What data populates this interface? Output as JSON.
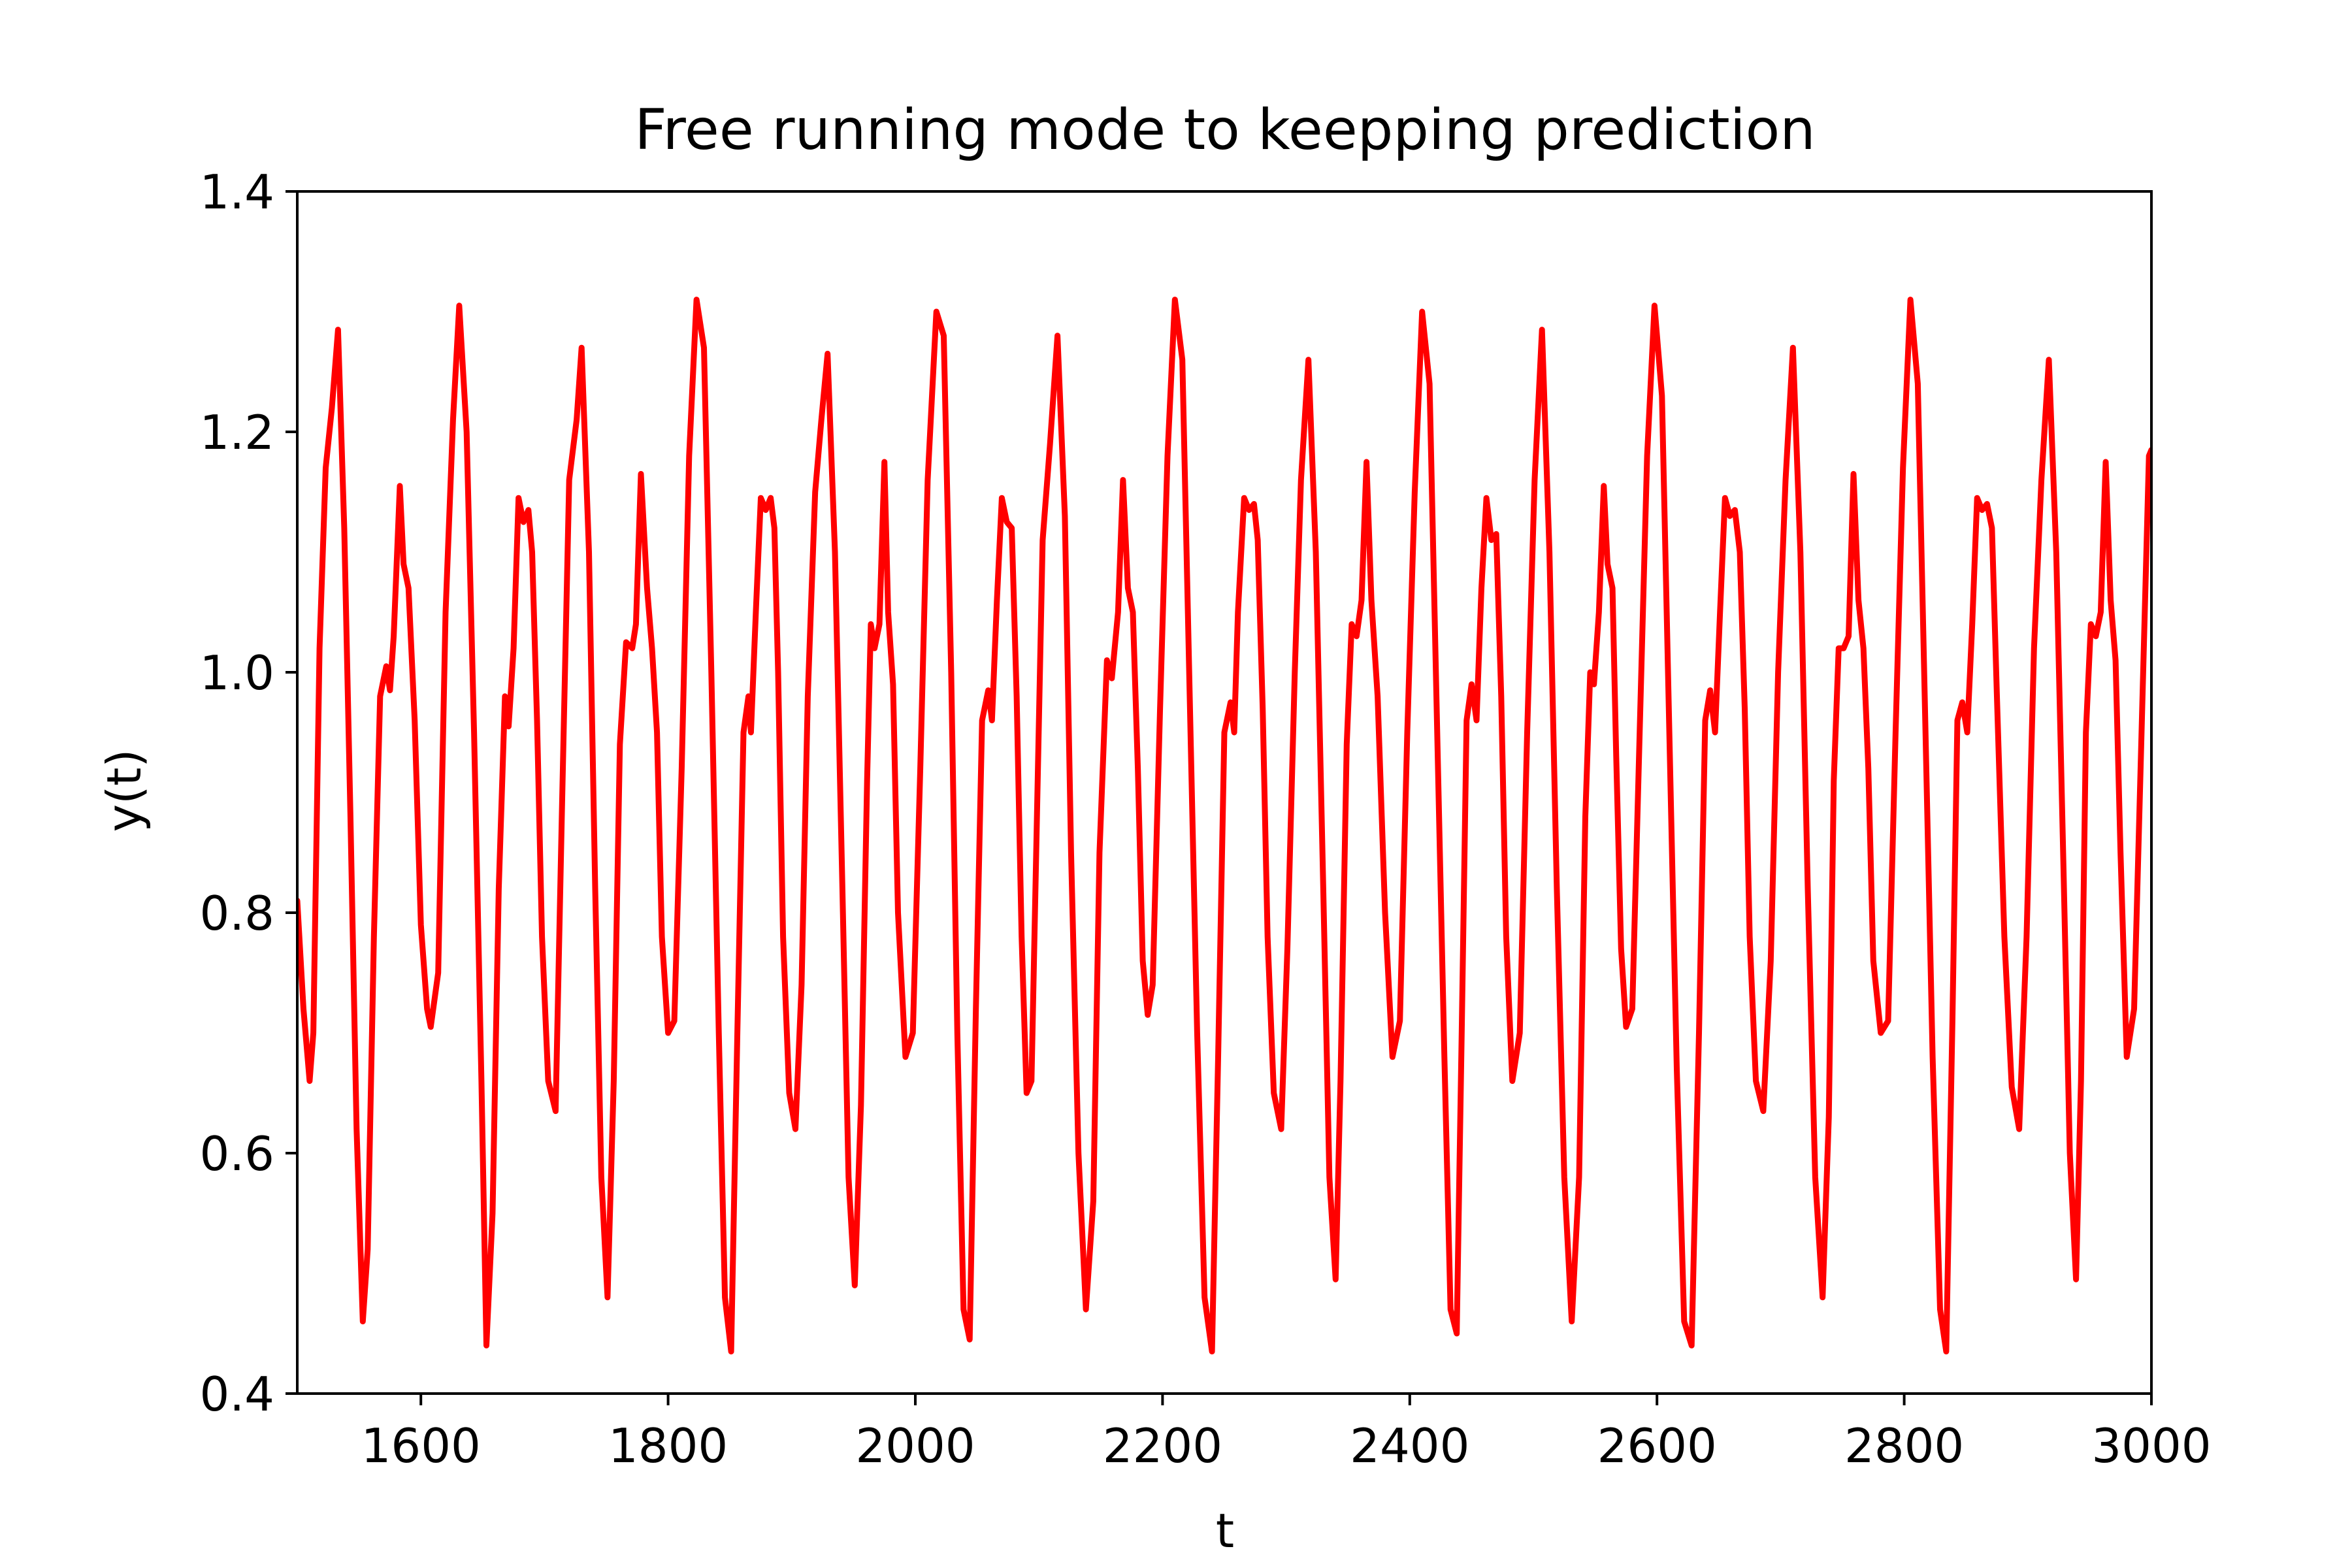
{
  "chart_data": {
    "type": "line",
    "title": "Free running mode to keepping prediction",
    "xlabel": "t",
    "ylabel": "y(t)",
    "xlim": [
      1500,
      3000
    ],
    "ylim": [
      0.4,
      1.4
    ],
    "grid": false,
    "xticks": [
      1600,
      1800,
      2000,
      2200,
      2400,
      2600,
      2800,
      3000
    ],
    "yticks": [
      0.4,
      0.6,
      0.8,
      1.0,
      1.2,
      1.4
    ],
    "xtick_labels": [
      "1600",
      "1800",
      "2000",
      "2200",
      "2400",
      "2600",
      "2800",
      "3000"
    ],
    "ytick_labels": [
      "0.4",
      "0.6",
      "0.8",
      "1.0",
      "1.2",
      "1.4"
    ],
    "series": [
      {
        "color": "#ff0000",
        "x": [
          1500,
          1505,
          1510,
          1513,
          1518,
          1523,
          1528,
          1533,
          1538,
          1543,
          1548,
          1553,
          1557,
          1562,
          1567,
          1572,
          1575,
          1578,
          1583,
          1586,
          1590,
          1595,
          1600,
          1605,
          1608,
          1614,
          1620,
          1626,
          1631,
          1637,
          1643,
          1649,
          1653,
          1658,
          1663,
          1668,
          1671,
          1675,
          1679,
          1683,
          1687,
          1690,
          1694,
          1698,
          1703,
          1709,
          1714,
          1720,
          1726,
          1730,
          1736,
          1741,
          1746,
          1751,
          1756,
          1761,
          1766,
          1771,
          1774,
          1778,
          1783,
          1787,
          1791,
          1795,
          1800,
          1805,
          1811,
          1817,
          1823,
          1829,
          1835,
          1841,
          1846,
          1851,
          1856,
          1861,
          1865,
          1867,
          1871,
          1875,
          1879,
          1883,
          1886,
          1889,
          1893,
          1898,
          1903,
          1908,
          1913,
          1919,
          1924,
          1929,
          1935,
          1941,
          1946,
          1951,
          1956,
          1961,
          1964,
          1967,
          1971,
          1975,
          1978,
          1982,
          1986,
          1992,
          1998,
          2004,
          2010,
          2017,
          2023,
          2029,
          2034,
          2039,
          2044,
          2049,
          2054,
          2059,
          2062,
          2066,
          2070,
          2074,
          2078,
          2082,
          2086,
          2090,
          2094,
          2098,
          2103,
          2109,
          2115,
          2121,
          2126,
          2132,
          2138,
          2144,
          2149,
          2155,
          2159,
          2164,
          2168,
          2172,
          2176,
          2180,
          2184,
          2188,
          2192,
          2198,
          2204,
          2210,
          2216,
          2222,
          2228,
          2234,
          2240,
          2245,
          2250,
          2255,
          2258,
          2261,
          2266,
          2270,
          2274,
          2277,
          2281,
          2285,
          2290,
          2296,
          2301,
          2307,
          2312,
          2318,
          2324,
          2330,
          2335,
          2340,
          2344,
          2349,
          2353,
          2357,
          2361,
          2365,
          2369,
          2374,
          2380,
          2386,
          2392,
          2398,
          2404,
          2410,
          2416,
          2422,
          2428,
          2433,
          2438,
          2442,
          2446,
          2450,
          2454,
          2458,
          2462,
          2466,
          2470,
          2474,
          2478,
          2483,
          2489,
          2495,
          2501,
          2507,
          2513,
          2519,
          2525,
          2531,
          2537,
          2542,
          2546,
          2549,
          2553,
          2557,
          2560,
          2564,
          2567,
          2571,
          2575,
          2580,
          2586,
          2592,
          2598,
          2604,
          2610,
          2616,
          2622,
          2628,
          2634,
          2639,
          2643,
          2647,
          2651,
          2655,
          2659,
          2663,
          2667,
          2671,
          2675,
          2680,
          2686,
          2692,
          2698,
          2704,
          2710,
          2716,
          2722,
          2728,
          2734,
          2739,
          2743,
          2747,
          2751,
          2755,
          2759,
          2763,
          2767,
          2771,
          2775,
          2781,
          2787,
          2793,
          2799,
          2805,
          2811,
          2817,
          2823,
          2829,
          2834,
          2839,
          2843,
          2847,
          2851,
          2855,
          2859,
          2863,
          2867,
          2871,
          2875,
          2881,
          2887,
          2893,
          2899,
          2905,
          2911,
          2917,
          2923,
          2929,
          2934,
          2939,
          2943,
          2947,
          2951,
          2955,
          2959,
          2963,
          2967,
          2971,
          2975,
          2980,
          2986,
          2992,
          2998,
          3000
        ],
        "y": [
          0.81,
          0.72,
          0.66,
          0.7,
          1.02,
          1.17,
          1.22,
          1.285,
          1.12,
          0.88,
          0.62,
          0.46,
          0.52,
          0.78,
          0.98,
          1.005,
          0.985,
          1.03,
          1.155,
          1.09,
          1.07,
          0.96,
          0.79,
          0.72,
          0.705,
          0.75,
          1.05,
          1.21,
          1.305,
          1.2,
          0.95,
          0.66,
          0.44,
          0.55,
          0.82,
          0.98,
          0.955,
          1.02,
          1.145,
          1.125,
          1.135,
          1.1,
          0.96,
          0.78,
          0.66,
          0.635,
          0.88,
          1.16,
          1.21,
          1.27,
          1.1,
          0.82,
          0.58,
          0.48,
          0.66,
          0.94,
          1.025,
          1.02,
          1.04,
          1.165,
          1.07,
          1.02,
          0.95,
          0.78,
          0.7,
          0.71,
          0.92,
          1.18,
          1.31,
          1.27,
          1.0,
          0.7,
          0.48,
          0.435,
          0.7,
          0.95,
          0.98,
          0.95,
          1.05,
          1.145,
          1.135,
          1.145,
          1.12,
          1.0,
          0.78,
          0.65,
          0.62,
          0.74,
          0.98,
          1.15,
          1.21,
          1.265,
          1.1,
          0.82,
          0.58,
          0.49,
          0.64,
          0.91,
          1.04,
          1.02,
          1.04,
          1.175,
          1.05,
          0.99,
          0.8,
          0.68,
          0.7,
          0.92,
          1.16,
          1.3,
          1.28,
          1.0,
          0.7,
          0.47,
          0.445,
          0.72,
          0.96,
          0.985,
          0.96,
          1.06,
          1.145,
          1.125,
          1.12,
          0.98,
          0.78,
          0.65,
          0.66,
          0.86,
          1.11,
          1.19,
          1.28,
          1.13,
          0.85,
          0.6,
          0.47,
          0.56,
          0.85,
          1.01,
          0.995,
          1.05,
          1.16,
          1.07,
          1.05,
          0.92,
          0.76,
          0.715,
          0.74,
          0.97,
          1.18,
          1.31,
          1.26,
          0.98,
          0.7,
          0.48,
          0.435,
          0.68,
          0.95,
          0.975,
          0.95,
          1.05,
          1.145,
          1.135,
          1.14,
          1.11,
          0.97,
          0.78,
          0.65,
          0.62,
          0.77,
          1.0,
          1.16,
          1.26,
          1.1,
          0.82,
          0.58,
          0.495,
          0.66,
          0.94,
          1.04,
          1.03,
          1.06,
          1.175,
          1.06,
          0.98,
          0.8,
          0.68,
          0.71,
          0.95,
          1.15,
          1.3,
          1.24,
          0.96,
          0.68,
          0.47,
          0.45,
          0.7,
          0.96,
          0.99,
          0.96,
          1.07,
          1.145,
          1.11,
          1.115,
          0.98,
          0.78,
          0.66,
          0.7,
          0.95,
          1.16,
          1.285,
          1.1,
          0.82,
          0.58,
          0.46,
          0.58,
          0.88,
          1.0,
          0.99,
          1.05,
          1.155,
          1.09,
          1.07,
          0.93,
          0.77,
          0.705,
          0.72,
          0.95,
          1.18,
          1.305,
          1.23,
          0.95,
          0.67,
          0.46,
          0.44,
          0.7,
          0.96,
          0.985,
          0.95,
          1.05,
          1.145,
          1.13,
          1.135,
          1.1,
          0.97,
          0.78,
          0.66,
          0.635,
          0.76,
          1.0,
          1.16,
          1.27,
          1.1,
          0.82,
          0.58,
          0.48,
          0.63,
          0.91,
          1.02,
          1.02,
          1.03,
          1.165,
          1.06,
          1.02,
          0.92,
          0.76,
          0.7,
          0.71,
          0.95,
          1.17,
          1.31,
          1.24,
          0.96,
          0.68,
          0.47,
          0.435,
          0.71,
          0.96,
          0.975,
          0.95,
          1.04,
          1.145,
          1.135,
          1.14,
          1.12,
          0.98,
          0.78,
          0.655,
          0.62,
          0.78,
          1.02,
          1.16,
          1.26,
          1.1,
          0.83,
          0.6,
          0.495,
          0.66,
          0.95,
          1.04,
          1.03,
          1.05,
          1.175,
          1.06,
          1.01,
          0.85,
          0.68,
          0.72,
          0.95,
          1.18,
          1.185
        ]
      }
    ]
  }
}
